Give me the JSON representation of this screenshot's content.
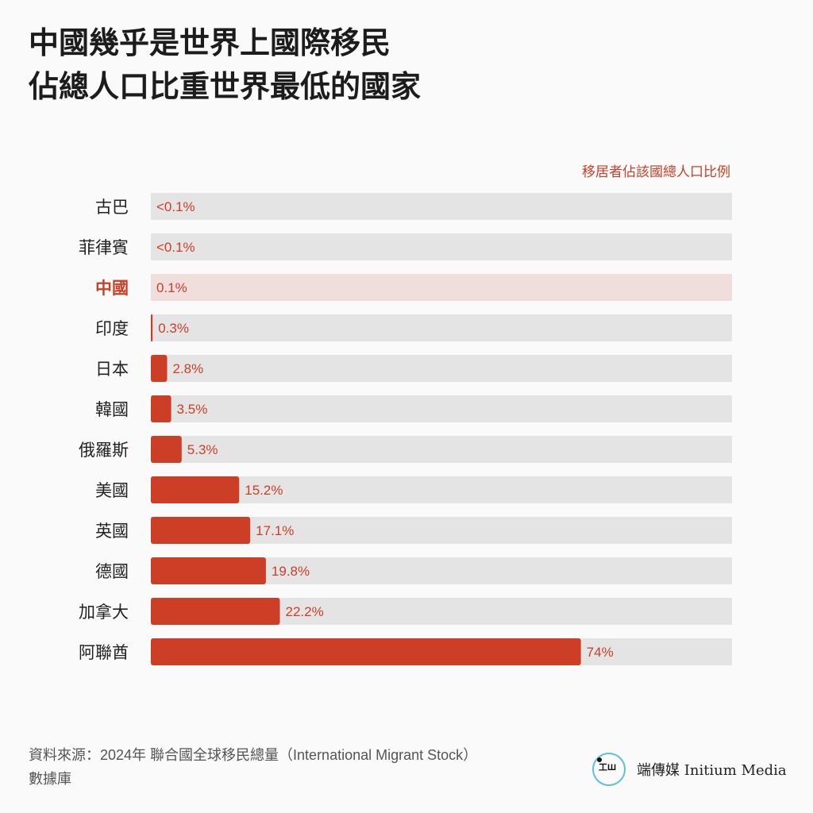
{
  "title_lines": [
    "中國幾乎是世界上國際移民",
    "佔總人口比重世界最低的國家"
  ],
  "chart_data": {
    "type": "bar",
    "orientation": "horizontal",
    "unit_label": "移居者佔該國總人口比例",
    "categories": [
      "古巴",
      "菲律賓",
      "中國",
      "印度",
      "日本",
      "韓國",
      "俄羅斯",
      "美國",
      "英國",
      "德國",
      "加拿大",
      "阿聯酋"
    ],
    "values": [
      0.1,
      0.1,
      0.1,
      0.3,
      2.8,
      3.5,
      5.3,
      15.2,
      17.1,
      19.8,
      22.2,
      74
    ],
    "value_labels": [
      "<0.1%",
      "<0.1%",
      "0.1%",
      "0.3%",
      "2.8%",
      "3.5%",
      "5.3%",
      "15.2%",
      "17.1%",
      "19.8%",
      "22.2%",
      "74%"
    ],
    "below_threshold": [
      true,
      true,
      false,
      false,
      false,
      false,
      false,
      false,
      false,
      false,
      false,
      false
    ],
    "highlight": "中國",
    "xlim": [
      0,
      100
    ],
    "colors": {
      "bar": "#cc3f26",
      "track": "#e4e4e4",
      "highlight_track": "#efdedb",
      "label": "#cc3f26"
    }
  },
  "source": {
    "line1": "資料來源：2024年 聯合國全球移民總量（International Migrant Stock）",
    "line2": "數據庫"
  },
  "logo": {
    "glyph": "ㅍ端",
    "chinese": "端傳媒",
    "english": "Initium Media"
  }
}
